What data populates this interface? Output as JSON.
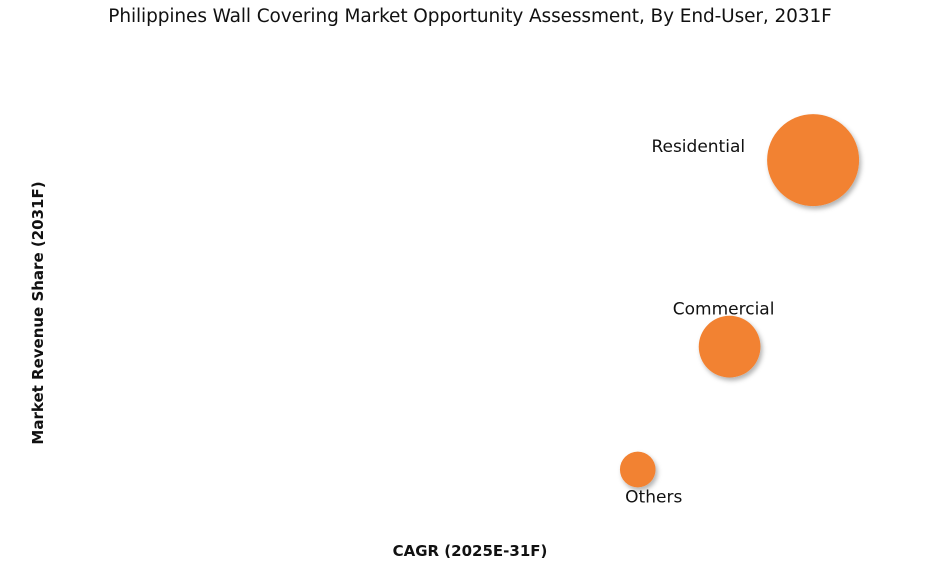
{
  "chart_data": {
    "type": "scatter",
    "title": "Philippines Wall Covering Market Opportunity Assessment, By End-User, 2031F",
    "xlabel": "CAGR (2025E-31F)",
    "ylabel": "Market Revenue Share (2031F)",
    "grid": false,
    "legend": "none",
    "bubble_color": "#F28232",
    "series": [
      {
        "label": "Residential",
        "x": 8.6,
        "y": 78,
        "size": 100
      },
      {
        "label": "Commercial",
        "x": 7.6,
        "y": 37,
        "size": 45
      },
      {
        "label": "Others",
        "x": 6.5,
        "y": 10,
        "size": 15
      }
    ]
  }
}
